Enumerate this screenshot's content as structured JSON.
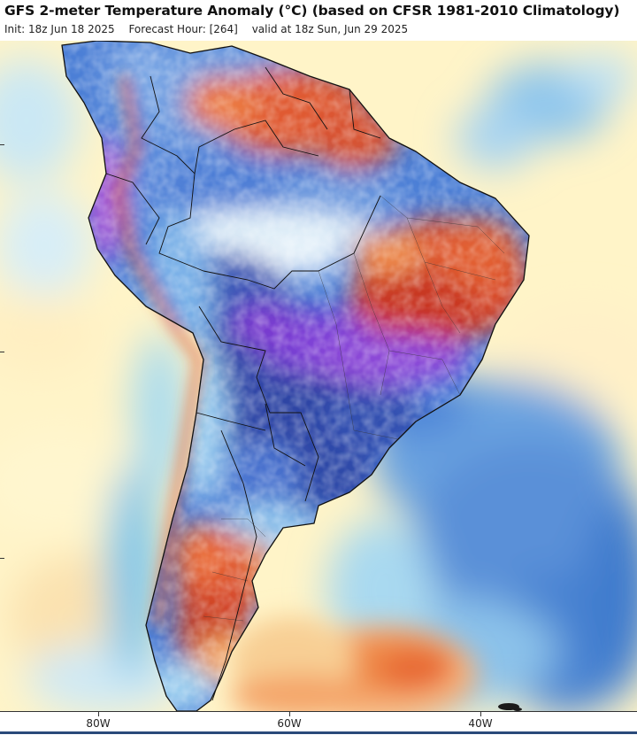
{
  "header": {
    "title": "GFS 2-meter Temperature Anomaly (°C) (based on CFSR 1981-2010 Climatology)",
    "init": "Init: 18z Jun 18 2025",
    "forecast_hour": "Forecast Hour: [264]",
    "valid": "valid at 18z Sun, Jun 29 2025"
  },
  "axis": {
    "lon_labels": [
      "80W",
      "60W",
      "40W"
    ]
  },
  "colors": {
    "warm_strong": "#c62a1a",
    "warm": "#ee7a3a",
    "warm_light": "#f8cf8c",
    "neutral": "#fff4c8",
    "cool_light": "#bfe4f2",
    "cool": "#5a96dc",
    "cold": "#2c4fae",
    "cold_strong": "#7a3ad6",
    "land_outline": "#111111"
  }
}
